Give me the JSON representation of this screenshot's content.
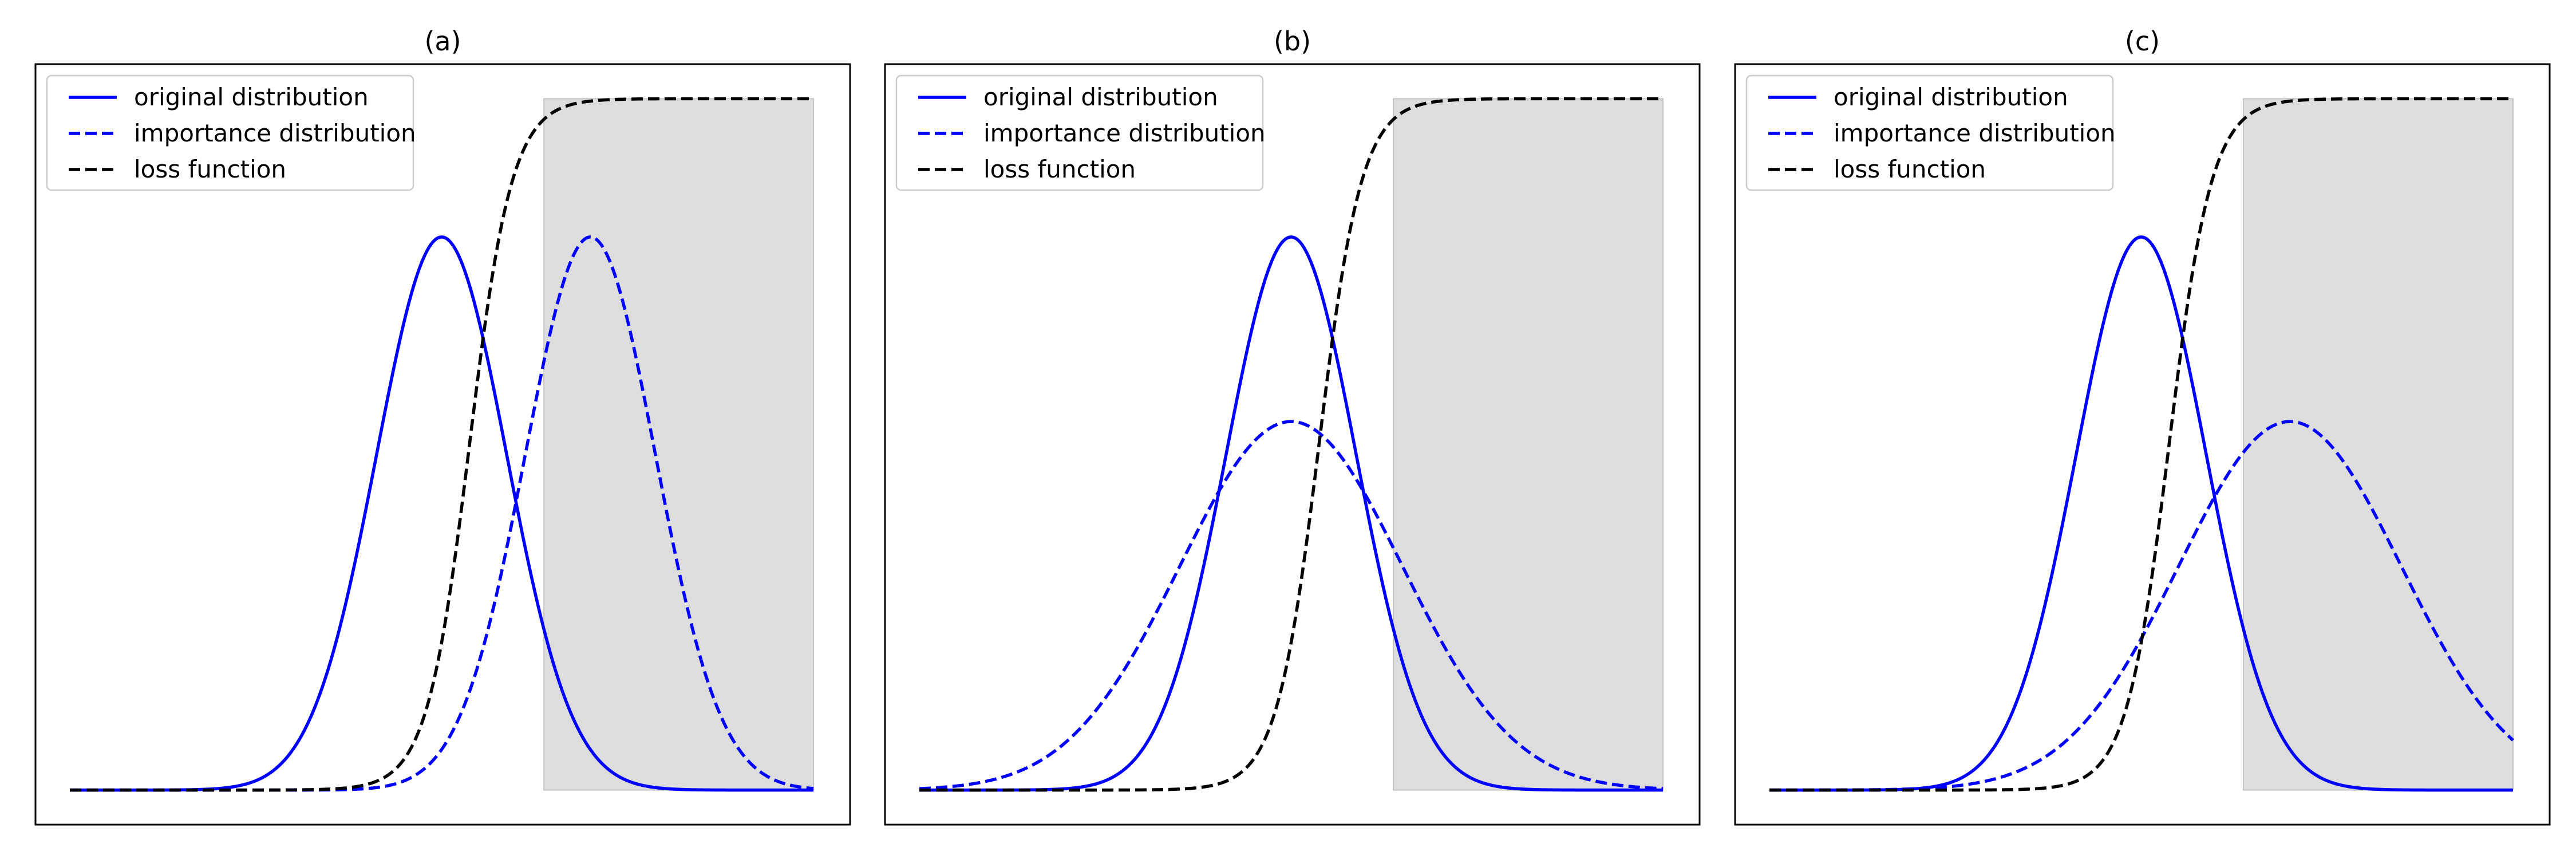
{
  "chart_data": [
    {
      "type": "line",
      "title": "(a)",
      "xlabel": "",
      "ylabel": "",
      "xlim": [
        -4,
        4
      ],
      "ylim": [
        -0.05,
        1.05
      ],
      "shaded_region": {
        "x": [
          1.1,
          4.0
        ],
        "y": [
          0,
          1
        ],
        "color": "#dddddd"
      },
      "legend": [
        "original distribution",
        "importance distribution",
        "loss function"
      ],
      "legend_position": "top-left",
      "grid": false,
      "series": [
        {
          "name": "original distribution",
          "style": "solid",
          "color": "#0000ff",
          "function": "gaussian",
          "mean": 0.0,
          "sd": 0.7,
          "peak": 0.8
        },
        {
          "name": "importance distribution",
          "style": "dashed",
          "color": "#0000ff",
          "function": "gaussian",
          "mean": 1.6,
          "sd": 0.7,
          "peak": 0.8
        },
        {
          "name": "loss function",
          "style": "dashed",
          "color": "#000000",
          "function": "logistic",
          "center": 0.3,
          "scale": 0.23,
          "max": 1.0
        }
      ]
    },
    {
      "type": "line",
      "title": "(b)",
      "xlabel": "",
      "ylabel": "",
      "xlim": [
        -4,
        4
      ],
      "ylim": [
        -0.05,
        1.05
      ],
      "shaded_region": {
        "x": [
          1.1,
          4.0
        ],
        "y": [
          0,
          1
        ],
        "color": "#dddddd"
      },
      "legend": [
        "original distribution",
        "importance distribution",
        "loss function"
      ],
      "legend_position": "top-left",
      "grid": false,
      "series": [
        {
          "name": "original distribution",
          "style": "solid",
          "color": "#0000ff",
          "function": "gaussian",
          "mean": 0.0,
          "sd": 0.7,
          "peak": 0.8
        },
        {
          "name": "importance distribution",
          "style": "dashed",
          "color": "#0000ff",
          "function": "gaussian",
          "mean": 0.0,
          "sd": 1.2,
          "peak": 0.533
        },
        {
          "name": "loss function",
          "style": "dashed",
          "color": "#000000",
          "function": "logistic",
          "center": 0.3,
          "scale": 0.23,
          "max": 1.0
        }
      ]
    },
    {
      "type": "line",
      "title": "(c)",
      "xlabel": "",
      "ylabel": "",
      "xlim": [
        -4,
        4
      ],
      "ylim": [
        -0.05,
        1.05
      ],
      "shaded_region": {
        "x": [
          1.1,
          4.0
        ],
        "y": [
          0,
          1
        ],
        "color": "#dddddd"
      },
      "legend": [
        "original distribution",
        "importance distribution",
        "loss function"
      ],
      "legend_position": "top-left",
      "grid": false,
      "series": [
        {
          "name": "original distribution",
          "style": "solid",
          "color": "#0000ff",
          "function": "gaussian",
          "mean": 0.0,
          "sd": 0.7,
          "peak": 0.8
        },
        {
          "name": "importance distribution",
          "style": "dashed",
          "color": "#0000ff",
          "function": "gaussian",
          "mean": 1.6,
          "sd": 1.2,
          "peak": 0.533
        },
        {
          "name": "loss function",
          "style": "dashed",
          "color": "#000000",
          "function": "logistic",
          "center": 0.3,
          "scale": 0.23,
          "max": 1.0
        }
      ]
    }
  ]
}
